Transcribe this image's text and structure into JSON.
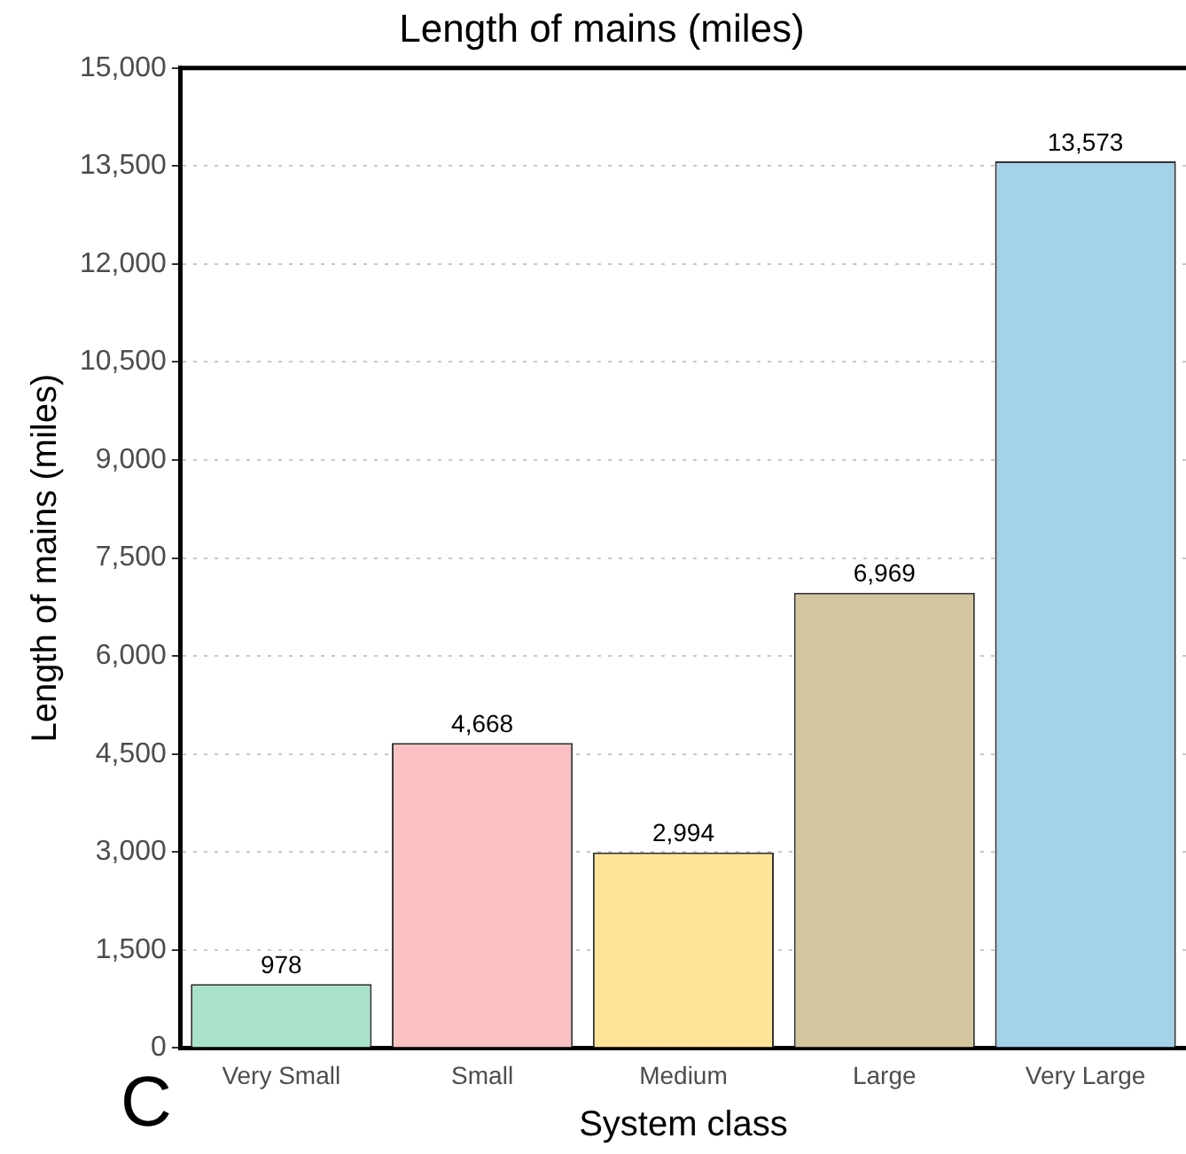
{
  "chart_data": {
    "type": "bar",
    "title": "Length of mains (miles)",
    "xlabel": "System class",
    "ylabel": "Length of mains (miles)",
    "categories": [
      "Very Small",
      "Small",
      "Medium",
      "Large",
      "Very Large"
    ],
    "values": [
      978,
      4668,
      2994,
      6969,
      13573
    ],
    "value_labels": [
      "978",
      "4,668",
      "2,994",
      "6,969",
      "13,573"
    ],
    "colors": [
      "#a8e2c9",
      "#f9c1c1",
      "#fde499",
      "#d3c69e",
      "#a4d2e8"
    ],
    "ylim": [
      0,
      15000
    ],
    "yticks": [
      0,
      {
        "value": 1500,
        "label": "1,500"
      },
      {
        "value": 3000,
        "label": "3,000"
      },
      {
        "value": 4500,
        "label": "4,500"
      },
      {
        "value": 6000,
        "label": "6,000"
      },
      {
        "value": 7500,
        "label": "7,500"
      },
      {
        "value": 9000,
        "label": "9,000"
      },
      {
        "value": 10500,
        "label": "10,500"
      },
      {
        "value": 12000,
        "label": "12,000"
      },
      {
        "value": 13500,
        "label": "13,500"
      },
      {
        "value": 15000,
        "label": "15,000"
      }
    ],
    "grid": "y",
    "legend": false,
    "annotations": [
      "C"
    ]
  }
}
